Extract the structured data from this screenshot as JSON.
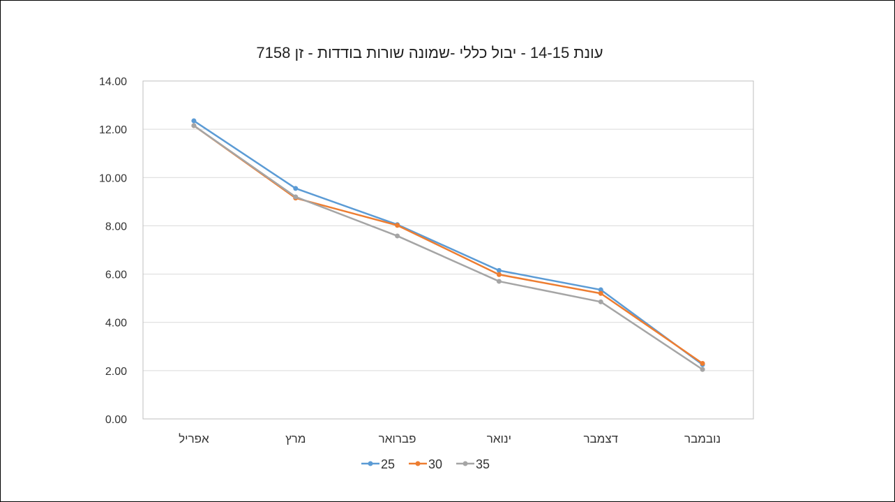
{
  "chart_data": {
    "type": "line",
    "title": "עונת 14-15 - יבול כללי -שמונה שורות בודדות - זן 7158",
    "categories": [
      "נובמבר",
      "דצמבר",
      "ינואר",
      "פברואר",
      "מרץ",
      "אפריל"
    ],
    "ylim": [
      0,
      14
    ],
    "yticks": [
      "0.00",
      "2.00",
      "4.00",
      "6.00",
      "8.00",
      "10.00",
      "12.00",
      "14.00"
    ],
    "grid": true,
    "legend_position": "bottom",
    "series": [
      {
        "name": "25",
        "color": "#5b9bd5",
        "values": [
          2.25,
          5.35,
          6.15,
          8.05,
          9.55,
          12.35
        ]
      },
      {
        "name": "30",
        "color": "#ed7d31",
        "values": [
          2.3,
          5.2,
          5.98,
          8.02,
          9.15,
          12.15
        ]
      },
      {
        "name": "35",
        "color": "#a5a5a5",
        "values": [
          2.05,
          4.85,
          5.7,
          7.58,
          9.2,
          12.15
        ]
      }
    ]
  }
}
